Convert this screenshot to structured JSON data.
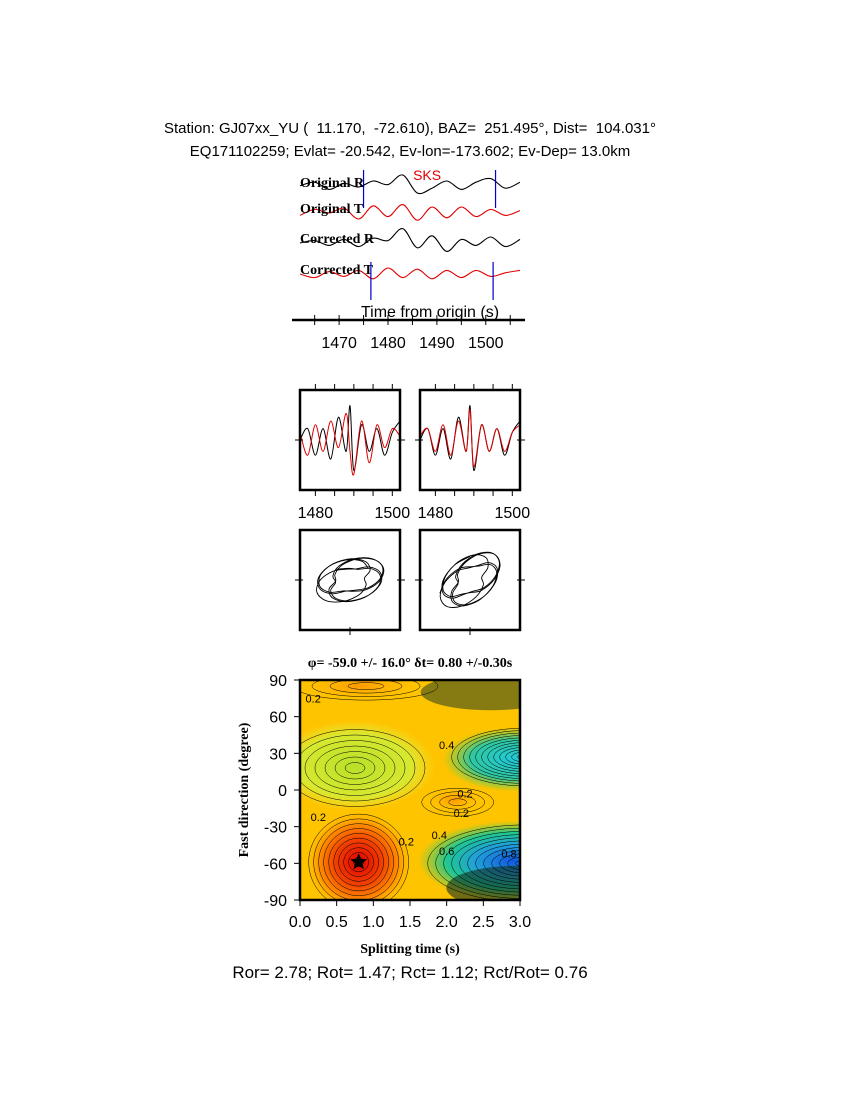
{
  "header": {
    "line1": "Station: GJ07xx_YU (  11.170,  -72.610), BAZ=  251.495°, Dist=  104.031°",
    "line2": "EQ171102259; Evlat= -20.542, Ev-lon=-173.602; Ev-Dep= 13.0km"
  },
  "colors": {
    "trace_r": "#000000",
    "trace_t": "#e00000",
    "marker": "#0000cc",
    "phase_label": "#e00000"
  },
  "chart_data": [
    {
      "id": "waveforms",
      "type": "line",
      "phase_label": "SKS",
      "xlabel": "Time from origin (s)",
      "xlim": [
        1462,
        1507
      ],
      "xticks": [
        1470,
        1480,
        1490,
        1500
      ],
      "window_markers": [
        1475,
        1502
      ],
      "corrected_markers": [
        1476.5,
        1501.5
      ],
      "series": [
        {
          "name": "Original R",
          "color": "#000000",
          "x": [
            1462,
            1465,
            1468,
            1471,
            1474,
            1477,
            1480,
            1483,
            1486,
            1489,
            1492,
            1495,
            1498,
            1501,
            1504,
            1507
          ],
          "values": [
            0.1,
            0.4,
            -0.2,
            0.3,
            0.0,
            0.5,
            0.2,
            1.0,
            -0.5,
            -0.1,
            0.5,
            -0.2,
            0.4,
            0.7,
            -0.1,
            0.4
          ]
        },
        {
          "name": "Original T",
          "color": "#e00000",
          "x": [
            1462,
            1465,
            1468,
            1471,
            1474,
            1477,
            1480,
            1483,
            1486,
            1489,
            1492,
            1495,
            1498,
            1501,
            1504,
            1507
          ],
          "values": [
            -0.2,
            0.3,
            0.0,
            0.4,
            -0.5,
            0.6,
            -0.3,
            0.7,
            -0.6,
            0.5,
            -0.4,
            0.5,
            -0.3,
            0.3,
            -0.2,
            0.2
          ]
        },
        {
          "name": "Corrected R",
          "color": "#000000",
          "x": [
            1462,
            1465,
            1468,
            1471,
            1474,
            1477,
            1480,
            1483,
            1486,
            1489,
            1492,
            1495,
            1498,
            1501,
            1504,
            1507
          ],
          "values": [
            0.0,
            0.2,
            -0.2,
            0.3,
            -0.3,
            0.4,
            0.2,
            1.2,
            -0.4,
            0.6,
            -0.7,
            0.3,
            -0.2,
            0.5,
            -0.3,
            0.3
          ]
        },
        {
          "name": "Corrected T",
          "color": "#e00000",
          "x": [
            1462,
            1465,
            1468,
            1471,
            1474,
            1477,
            1480,
            1483,
            1486,
            1489,
            1492,
            1495,
            1498,
            1501,
            1504,
            1507
          ],
          "values": [
            0.0,
            -0.3,
            0.2,
            -0.2,
            0.3,
            -0.4,
            0.5,
            -0.3,
            0.4,
            -0.4,
            0.3,
            -0.3,
            0.3,
            -0.2,
            0.1,
            0.3
          ]
        }
      ]
    },
    {
      "id": "fast-slow-original",
      "type": "line",
      "xlim": [
        1476,
        1502
      ],
      "xticks": [
        1480,
        1500
      ],
      "series": [
        {
          "color": "#000000",
          "x": [
            1476,
            1478,
            1480,
            1482,
            1484,
            1486,
            1488,
            1489,
            1490,
            1492,
            1494,
            1496,
            1498,
            1500,
            1502
          ],
          "values": [
            0.0,
            0.3,
            -0.4,
            0.3,
            -0.5,
            0.6,
            -0.3,
            0.9,
            -0.8,
            0.4,
            -0.3,
            0.3,
            -0.4,
            0.2,
            0.5
          ]
        },
        {
          "color": "#e00000",
          "x": [
            1476,
            1478,
            1480,
            1482,
            1484,
            1486,
            1488,
            1489,
            1490,
            1492,
            1494,
            1496,
            1498,
            1500,
            1502
          ],
          "values": [
            0.2,
            -0.4,
            0.4,
            -0.3,
            0.5,
            -0.2,
            0.7,
            -0.3,
            -0.9,
            0.5,
            -0.6,
            0.4,
            -0.2,
            0.3,
            0.1
          ]
        }
      ]
    },
    {
      "id": "fast-slow-corrected",
      "type": "line",
      "xlim": [
        1476,
        1502
      ],
      "xticks": [
        1480,
        1500
      ],
      "series": [
        {
          "color": "#000000",
          "x": [
            1476,
            1478,
            1480,
            1482,
            1484,
            1486,
            1488,
            1489,
            1490,
            1492,
            1494,
            1496,
            1498,
            1500,
            1502
          ],
          "values": [
            0.0,
            0.3,
            -0.4,
            0.3,
            -0.5,
            0.6,
            -0.3,
            0.9,
            -0.8,
            0.4,
            -0.3,
            0.3,
            -0.4,
            0.2,
            0.5
          ]
        },
        {
          "color": "#e00000",
          "x": [
            1476,
            1478,
            1480,
            1482,
            1484,
            1486,
            1488,
            1489,
            1490,
            1492,
            1494,
            1496,
            1498,
            1500,
            1502
          ],
          "values": [
            0.1,
            0.3,
            -0.3,
            0.4,
            -0.4,
            0.5,
            -0.3,
            0.8,
            -0.7,
            0.4,
            -0.3,
            0.3,
            -0.3,
            0.2,
            0.4
          ]
        }
      ]
    },
    {
      "id": "particle-motion-original",
      "type": "line",
      "description_type": "particle-motion",
      "series": [
        {
          "color": "#000000"
        }
      ]
    },
    {
      "id": "particle-motion-corrected",
      "type": "line",
      "description_type": "particle-motion",
      "series": [
        {
          "color": "#000000"
        }
      ]
    },
    {
      "id": "energy-grid",
      "type": "heatmap",
      "title": "φ= -59.0 +/- 16.0° δt= 0.80 +/-0.30s",
      "xlabel": "Splitting time (s)",
      "ylabel": "Fast direction (degree)",
      "xlim": [
        0,
        3
      ],
      "ylim": [
        -90,
        90
      ],
      "xticks": [
        0.0,
        0.5,
        1.0,
        1.5,
        2.0,
        2.5,
        3.0
      ],
      "xtick_labels": [
        "0.0",
        "0.5",
        "1.0",
        "1.5",
        "2.0",
        "2.5",
        "3.0"
      ],
      "yticks": [
        90,
        60,
        30,
        0,
        -30,
        -60,
        -90
      ],
      "ytick_labels": [
        "90",
        "60",
        "30",
        "0",
        "-30",
        "-60",
        "-90"
      ],
      "best_fit": {
        "dt": 0.8,
        "phi": -59
      },
      "contour_labels": [
        {
          "text": "0.2",
          "x": 0.18,
          "y": 75
        },
        {
          "text": "0.4",
          "x": 2.0,
          "y": 37
        },
        {
          "text": "0.2",
          "x": 2.25,
          "y": -3
        },
        {
          "text": "0.2",
          "x": 2.2,
          "y": -19
        },
        {
          "text": "0.2",
          "x": 0.25,
          "y": -22
        },
        {
          "text": "0.2",
          "x": 1.45,
          "y": -42
        },
        {
          "text": "0.4",
          "x": 1.9,
          "y": -37
        },
        {
          "text": "0.6",
          "x": 2.0,
          "y": -50
        },
        {
          "text": "0.8",
          "x": 2.85,
          "y": -52
        }
      ],
      "colorscale": [
        "#e00000",
        "#ff8800",
        "#ffd000",
        "#f5e830",
        "#a8e020",
        "#30c060",
        "#20c8c8",
        "#1060e0",
        "#000000"
      ]
    }
  ],
  "footer": {
    "text": "Ror= 2.78; Rot= 1.47; Rct= 1.12; Rct/Rot= 0.76"
  }
}
